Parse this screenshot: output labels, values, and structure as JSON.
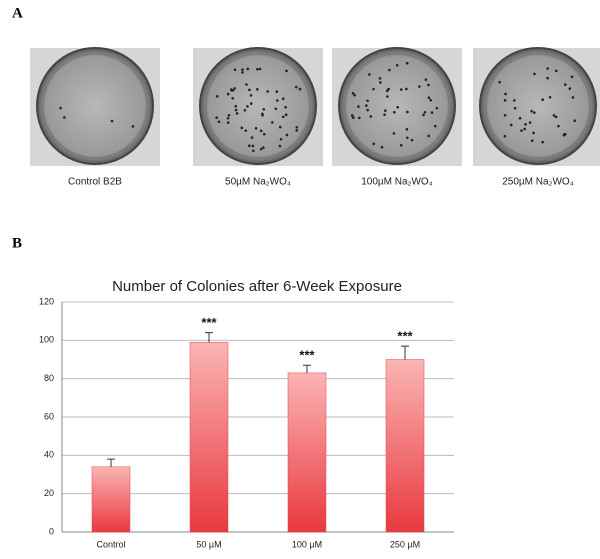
{
  "panel_a": {
    "label": "A",
    "plates": [
      "Control B2B",
      "50µM Na₂WO₄",
      "100µM Na₂WO₄",
      "250µM Na₂WO₄"
    ]
  },
  "panel_b": {
    "label": "B"
  },
  "chart_data": {
    "type": "bar",
    "title": "Number of Colonies after 6-Week Exposure",
    "categories": [
      "Control",
      "50 µM",
      "100 µM",
      "250 µM"
    ],
    "values": [
      34,
      99,
      83,
      90
    ],
    "errors": [
      4,
      5,
      4,
      7
    ],
    "annotations": [
      null,
      "***",
      "***",
      "***"
    ],
    "color": "#e8474f",
    "ylim": [
      0,
      120
    ],
    "yticks": [
      0,
      20,
      40,
      60,
      80,
      100,
      120
    ],
    "grid": true
  }
}
